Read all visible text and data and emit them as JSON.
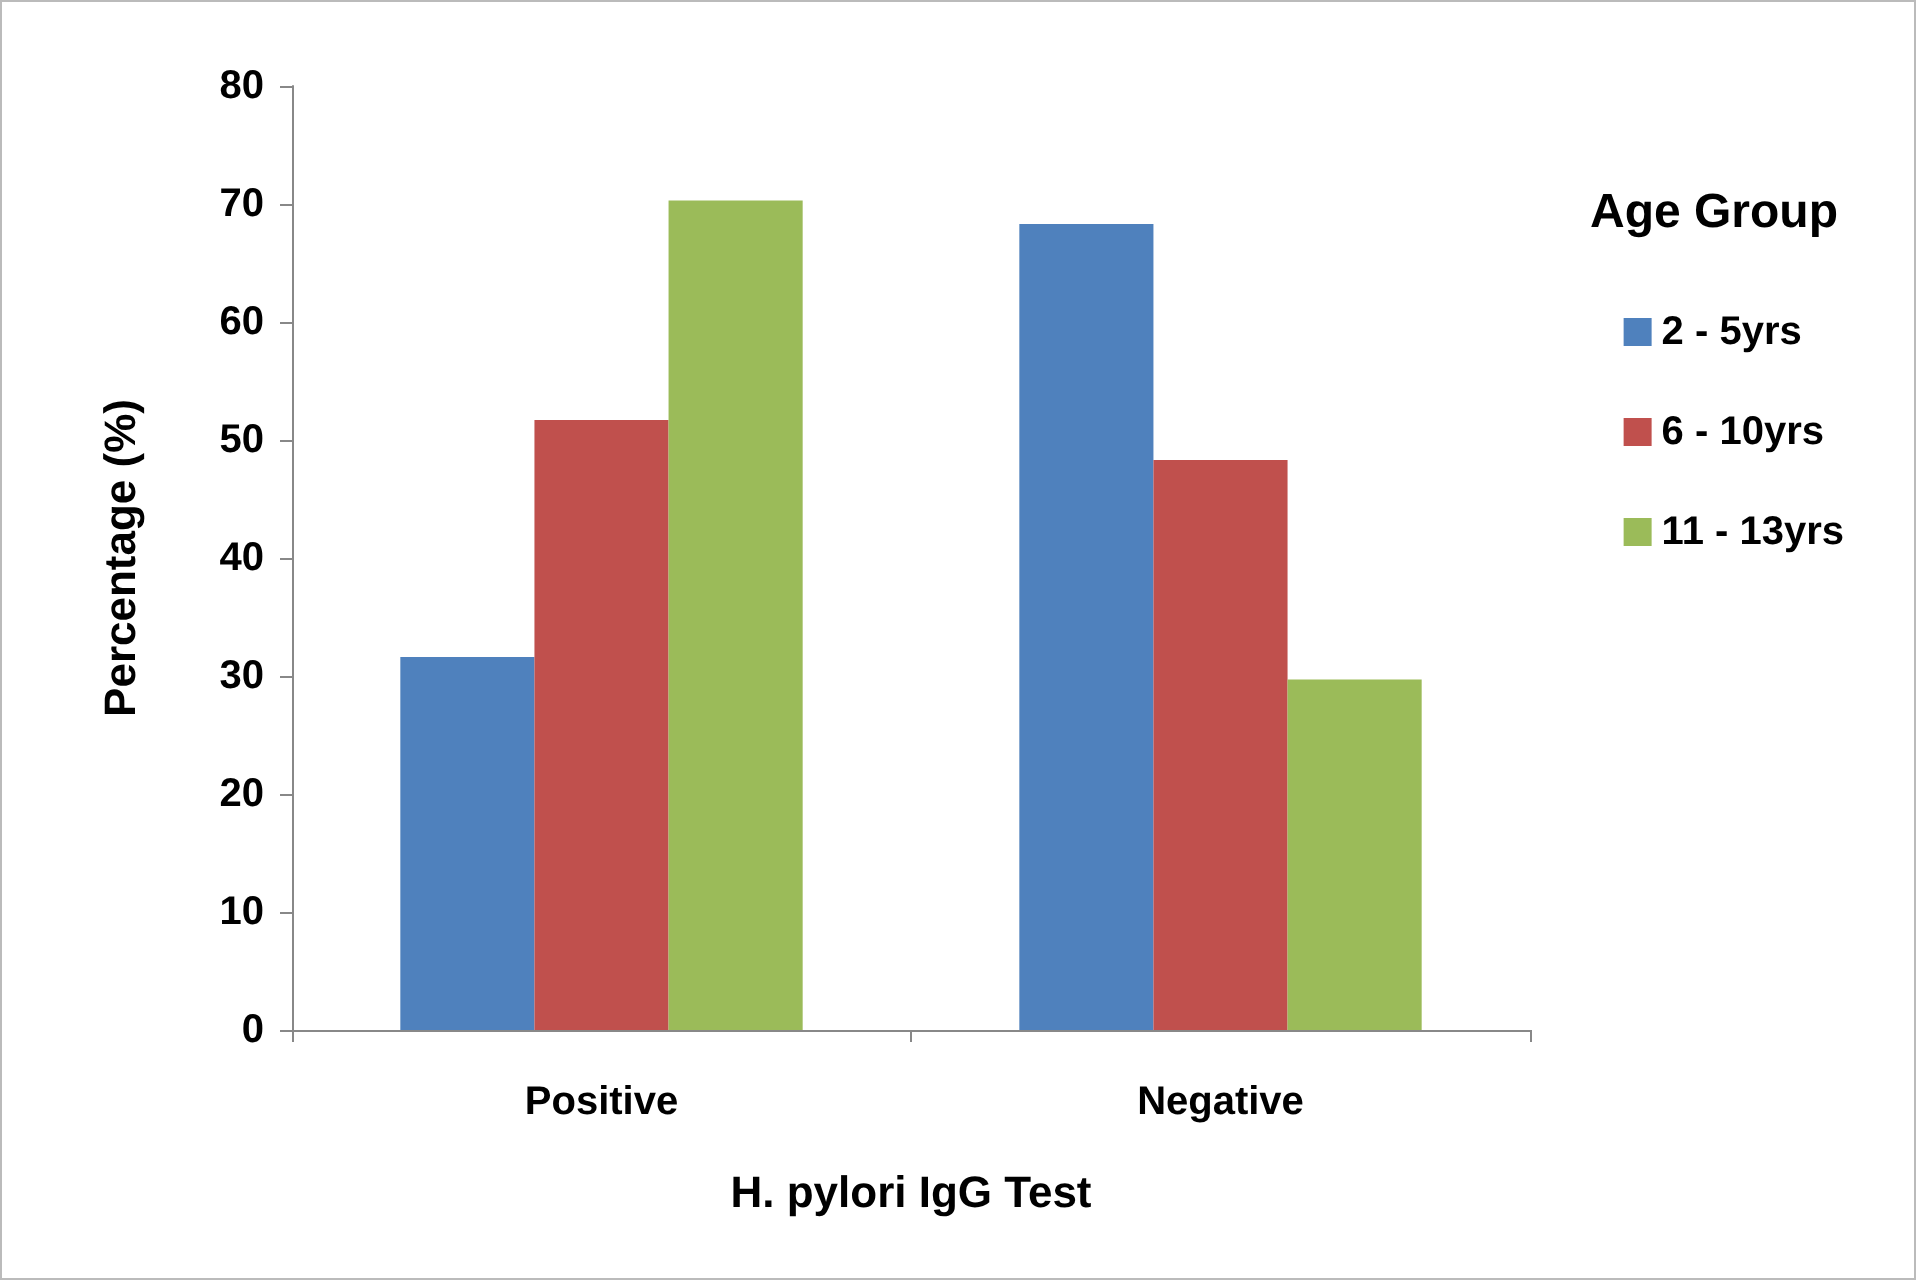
{
  "chart_data": {
    "type": "bar",
    "xlabel": "H. pylori IgG Test",
    "ylabel": "Percentage (%)",
    "legend_title": "Age Group",
    "categories": [
      "Positive",
      "Negative"
    ],
    "series": [
      {
        "name": "2 - 5yrs",
        "color": "#4f81bd",
        "values": [
          31.6,
          68.3
        ]
      },
      {
        "name": "6 - 10yrs",
        "color": "#c0504d",
        "values": [
          51.7,
          48.3
        ]
      },
      {
        "name": "11 - 13yrs",
        "color": "#9bbb59",
        "values": [
          70.3,
          29.7
        ]
      }
    ],
    "ylim": [
      0,
      80
    ],
    "yticks": [
      0,
      10,
      20,
      30,
      40,
      50,
      60,
      70,
      80
    ],
    "grid": false,
    "legend": "right"
  }
}
